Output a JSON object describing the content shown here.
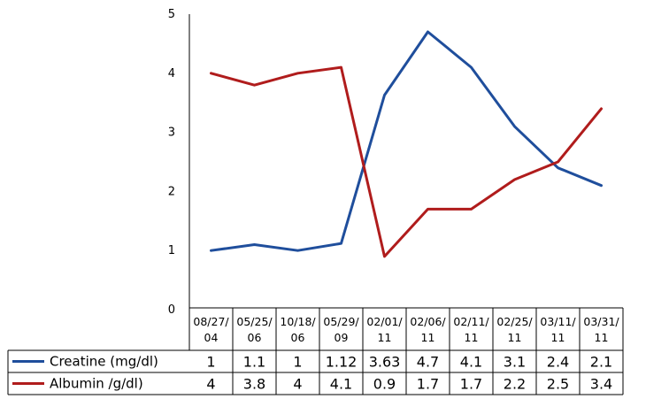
{
  "chart_data": {
    "type": "line",
    "categories": [
      "08/27/04",
      "05/25/06",
      "10/18/06",
      "05/29/09",
      "02/01/11",
      "02/06/11",
      "02/11/11",
      "02/25/11",
      "03/11/11",
      "03/31/11"
    ],
    "series": [
      {
        "name": "Creatine (mg/dl)",
        "color": "#1f4e9c",
        "values": [
          1,
          1.1,
          1,
          1.12,
          3.63,
          4.7,
          4.1,
          3.1,
          2.4,
          2.1
        ],
        "table_values": [
          "1",
          "1.1",
          "1",
          "1.12",
          "3.63",
          "4.7",
          "4.1",
          "3.1",
          "2.4",
          "2.1"
        ]
      },
      {
        "name": "Albumin /g/dl)",
        "color": "#b01c1c",
        "values": [
          4,
          3.8,
          4,
          4.1,
          0.9,
          1.7,
          1.7,
          2.2,
          2.5,
          3.4
        ],
        "table_values": [
          "4",
          "3.8",
          "4",
          "4.1",
          "0.9",
          "1.7",
          "1.7",
          "2.2",
          "2.5",
          "3.4"
        ]
      }
    ],
    "ylim": [
      0,
      5
    ],
    "yticks": [
      "0",
      "1",
      "2",
      "3",
      "4",
      "5"
    ],
    "grid": false,
    "legend": "data-table"
  }
}
